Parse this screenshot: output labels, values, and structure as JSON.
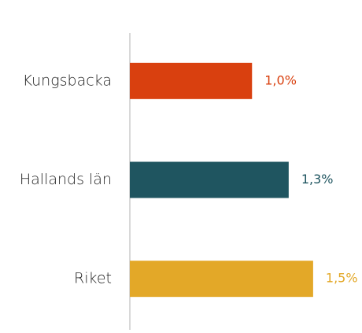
{
  "chart_data": {
    "type": "bar",
    "orientation": "horizontal",
    "categories": [
      "Kungsbacka",
      "Hallands län",
      "Riket"
    ],
    "values": [
      1.0,
      1.3,
      1.5
    ],
    "value_labels": [
      "1,0%",
      "1,3%",
      "1,5%"
    ],
    "colors": [
      "#d9400f",
      "#1f5560",
      "#e3a828"
    ],
    "xlim": [
      0,
      1.9
    ]
  }
}
